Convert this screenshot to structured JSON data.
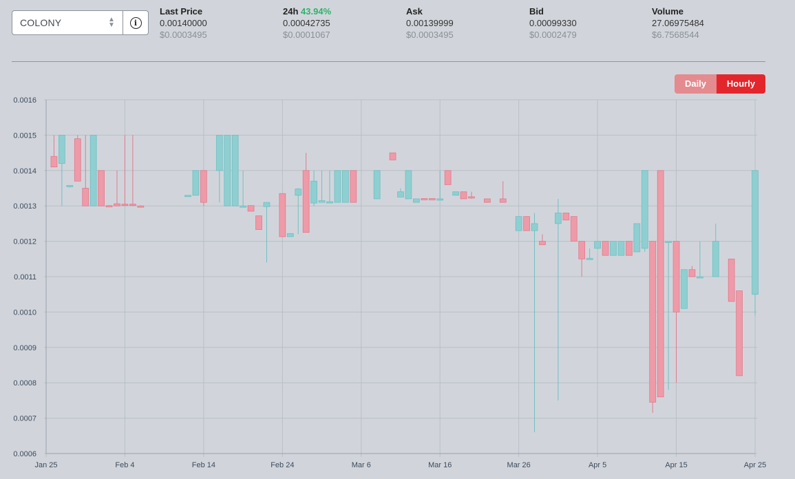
{
  "selector": {
    "value": "COLONY",
    "chevron": "chevron-updown-icon",
    "info_icon": "info-icon",
    "info_glyph": "i"
  },
  "stats": [
    {
      "label": "Last Price",
      "value": "0.00140000",
      "usd": "$0.0003495"
    },
    {
      "label": "24h",
      "label_extra": "43.94%",
      "value": "0.00042735",
      "usd": "$0.0001067"
    },
    {
      "label": "Ask",
      "value": "0.00139999",
      "usd": "$0.0003495"
    },
    {
      "label": "Bid",
      "value": "0.00099330",
      "usd": "$0.0002479"
    },
    {
      "label": "Volume",
      "value": "27.06975484",
      "usd": "$6.7568544"
    }
  ],
  "toggle": {
    "daily": "Daily",
    "hourly": "Hourly",
    "active": "Hourly"
  },
  "colors": {
    "up": "#8fcfd1",
    "down": "#ef9aa8",
    "grid": "#b9bec6",
    "green": "#2db36a",
    "accent": "#e3262c"
  },
  "chart_data": {
    "type": "candlestick",
    "title": "",
    "xlabel": "",
    "ylabel": "",
    "ylim": [
      0.0006,
      0.0016
    ],
    "yticks": [
      "0.0016",
      "0.0015",
      "0.0014",
      "0.0013",
      "0.0012",
      "0.0011",
      "0.0010",
      "0.0009",
      "0.0008",
      "0.0007",
      "0.0006"
    ],
    "xlim": [
      "2025-01-25",
      "2025-04-25"
    ],
    "xticks": [
      {
        "date": "2025-01-25",
        "label": "Jan 25"
      },
      {
        "date": "2025-02-04",
        "label": "Feb 4"
      },
      {
        "date": "2025-02-14",
        "label": "Feb 14"
      },
      {
        "date": "2025-02-24",
        "label": "Feb 24"
      },
      {
        "date": "2025-03-06",
        "label": "Mar 6"
      },
      {
        "date": "2025-03-16",
        "label": "Mar 16"
      },
      {
        "date": "2025-03-26",
        "label": "Mar 26"
      },
      {
        "date": "2025-04-05",
        "label": "Apr 5"
      },
      {
        "date": "2025-04-15",
        "label": "Apr 15"
      },
      {
        "date": "2025-04-25",
        "label": "Apr 25"
      }
    ],
    "grid": true,
    "candles": [
      {
        "date": "2025-01-26",
        "o": 0.00144,
        "h": 0.0015,
        "l": 0.00141,
        "c": 0.00141
      },
      {
        "date": "2025-01-27",
        "o": 0.00142,
        "h": 0.0015,
        "l": 0.0013,
        "c": 0.0015
      },
      {
        "date": "2025-01-28",
        "o": 0.001355,
        "h": 0.001358,
        "l": 0.001352,
        "c": 0.001358
      },
      {
        "date": "2025-01-29",
        "o": 0.00149,
        "h": 0.0015,
        "l": 0.00137,
        "c": 0.00137
      },
      {
        "date": "2025-01-30",
        "o": 0.00135,
        "h": 0.0015,
        "l": 0.0013,
        "c": 0.0013
      },
      {
        "date": "2025-01-31",
        "o": 0.0013,
        "h": 0.0015,
        "l": 0.0013,
        "c": 0.0015
      },
      {
        "date": "2025-02-01",
        "o": 0.0014,
        "h": 0.0014,
        "l": 0.0013,
        "c": 0.0013
      },
      {
        "date": "2025-02-02",
        "o": 0.001301,
        "h": 0.001302,
        "l": 0.001297,
        "c": 0.001298
      },
      {
        "date": "2025-02-03",
        "o": 0.001306,
        "h": 0.0014,
        "l": 0.0013,
        "c": 0.0013
      },
      {
        "date": "2025-02-04",
        "o": 0.001305,
        "h": 0.0015,
        "l": 0.0013,
        "c": 0.001303
      },
      {
        "date": "2025-02-05",
        "o": 0.001305,
        "h": 0.0015,
        "l": 0.0013,
        "c": 0.001303
      },
      {
        "date": "2025-02-06",
        "o": 0.0013,
        "h": 0.001302,
        "l": 0.001297,
        "c": 0.001298
      },
      {
        "date": "2025-02-12",
        "o": 0.001328,
        "h": 0.00133,
        "l": 0.001328,
        "c": 0.00133
      },
      {
        "date": "2025-02-13",
        "o": 0.00133,
        "h": 0.0014,
        "l": 0.00133,
        "c": 0.0014
      },
      {
        "date": "2025-02-14",
        "o": 0.0014,
        "h": 0.0014,
        "l": 0.0013,
        "c": 0.00131
      },
      {
        "date": "2025-02-16",
        "o": 0.0014,
        "h": 0.0015,
        "l": 0.00131,
        "c": 0.0015
      },
      {
        "date": "2025-02-17",
        "o": 0.0013,
        "h": 0.0015,
        "l": 0.0013,
        "c": 0.0015
      },
      {
        "date": "2025-02-18",
        "o": 0.0013,
        "h": 0.0015,
        "l": 0.0013,
        "c": 0.0015
      },
      {
        "date": "2025-02-19",
        "o": 0.0013,
        "h": 0.0014,
        "l": 0.0013,
        "c": 0.0013
      },
      {
        "date": "2025-02-20",
        "o": 0.001301,
        "h": 0.0013,
        "l": 0.001285,
        "c": 0.001285
      },
      {
        "date": "2025-02-21",
        "o": 0.001272,
        "h": 0.001272,
        "l": 0.001233,
        "c": 0.001233
      },
      {
        "date": "2025-02-22",
        "o": 0.001298,
        "h": 0.00131,
        "l": 0.00114,
        "c": 0.00131
      },
      {
        "date": "2025-02-24",
        "o": 0.001335,
        "h": 0.001335,
        "l": 0.001213,
        "c": 0.001213
      },
      {
        "date": "2025-02-25",
        "o": 0.001213,
        "h": 0.001213,
        "l": 0.001213,
        "c": 0.001222
      },
      {
        "date": "2025-02-26",
        "o": 0.00133,
        "h": 0.00135,
        "l": 0.00122,
        "c": 0.001348
      },
      {
        "date": "2025-02-27",
        "o": 0.0014,
        "h": 0.00145,
        "l": 0.001225,
        "c": 0.001225
      },
      {
        "date": "2025-02-28",
        "o": 0.001308,
        "h": 0.0014,
        "l": 0.0013,
        "c": 0.00137
      },
      {
        "date": "2025-03-01",
        "o": 0.00131,
        "h": 0.0014,
        "l": 0.00131,
        "c": 0.001315
      },
      {
        "date": "2025-03-02",
        "o": 0.00131,
        "h": 0.0014,
        "l": 0.00131,
        "c": 0.001312
      },
      {
        "date": "2025-03-03",
        "o": 0.00131,
        "h": 0.0014,
        "l": 0.00131,
        "c": 0.0014
      },
      {
        "date": "2025-03-04",
        "o": 0.00131,
        "h": 0.0014,
        "l": 0.00131,
        "c": 0.0014
      },
      {
        "date": "2025-03-05",
        "o": 0.0014,
        "h": 0.0014,
        "l": 0.00131,
        "c": 0.00131
      },
      {
        "date": "2025-03-08",
        "o": 0.00132,
        "h": 0.0014,
        "l": 0.00132,
        "c": 0.0014
      },
      {
        "date": "2025-03-10",
        "o": 0.00145,
        "h": 0.00145,
        "l": 0.00143,
        "c": 0.00143
      },
      {
        "date": "2025-03-11",
        "o": 0.001325,
        "h": 0.00135,
        "l": 0.001325,
        "c": 0.00134
      },
      {
        "date": "2025-03-12",
        "o": 0.00132,
        "h": 0.0014,
        "l": 0.00132,
        "c": 0.0014
      },
      {
        "date": "2025-03-13",
        "o": 0.00131,
        "h": 0.00132,
        "l": 0.00131,
        "c": 0.00132
      },
      {
        "date": "2025-03-14",
        "o": 0.001321,
        "h": 0.001321,
        "l": 0.001319,
        "c": 0.00132
      },
      {
        "date": "2025-03-15",
        "o": 0.001321,
        "h": 0.001322,
        "l": 0.00132,
        "c": 0.00132
      },
      {
        "date": "2025-03-16",
        "o": 0.00132,
        "h": 0.0014,
        "l": 0.00132,
        "c": 0.00132
      },
      {
        "date": "2025-03-17",
        "o": 0.0014,
        "h": 0.0014,
        "l": 0.00136,
        "c": 0.00136
      },
      {
        "date": "2025-03-18",
        "o": 0.00133,
        "h": 0.00134,
        "l": 0.00133,
        "c": 0.00134
      },
      {
        "date": "2025-03-19",
        "o": 0.00134,
        "h": 0.00134,
        "l": 0.00132,
        "c": 0.00132
      },
      {
        "date": "2025-03-20",
        "o": 0.001326,
        "h": 0.00134,
        "l": 0.00132,
        "c": 0.001322
      },
      {
        "date": "2025-03-22",
        "o": 0.00132,
        "h": 0.00132,
        "l": 0.00131,
        "c": 0.00131
      },
      {
        "date": "2025-03-24",
        "o": 0.00132,
        "h": 0.00137,
        "l": 0.00131,
        "c": 0.00131
      },
      {
        "date": "2025-03-26",
        "o": 0.00123,
        "h": 0.00127,
        "l": 0.00123,
        "c": 0.00127
      },
      {
        "date": "2025-03-27",
        "o": 0.00127,
        "h": 0.00127,
        "l": 0.00123,
        "c": 0.00123
      },
      {
        "date": "2025-03-28",
        "o": 0.00123,
        "h": 0.00128,
        "l": 0.00066,
        "c": 0.00125
      },
      {
        "date": "2025-03-29",
        "o": 0.0012,
        "h": 0.00122,
        "l": 0.00119,
        "c": 0.00119
      },
      {
        "date": "2025-03-31",
        "o": 0.00125,
        "h": 0.00132,
        "l": 0.00075,
        "c": 0.00128
      },
      {
        "date": "2025-04-01",
        "o": 0.00128,
        "h": 0.00128,
        "l": 0.00126,
        "c": 0.00126
      },
      {
        "date": "2025-04-02",
        "o": 0.00127,
        "h": 0.00127,
        "l": 0.0012,
        "c": 0.0012
      },
      {
        "date": "2025-04-03",
        "o": 0.0012,
        "h": 0.0012,
        "l": 0.0011,
        "c": 0.00115
      },
      {
        "date": "2025-04-04",
        "o": 0.00115,
        "h": 0.00118,
        "l": 0.00115,
        "c": 0.001152
      },
      {
        "date": "2025-04-05",
        "o": 0.00118,
        "h": 0.0012,
        "l": 0.00118,
        "c": 0.0012
      },
      {
        "date": "2025-04-06",
        "o": 0.0012,
        "h": 0.0012,
        "l": 0.00116,
        "c": 0.00116
      },
      {
        "date": "2025-04-07",
        "o": 0.00116,
        "h": 0.0012,
        "l": 0.00116,
        "c": 0.0012
      },
      {
        "date": "2025-04-08",
        "o": 0.00116,
        "h": 0.0012,
        "l": 0.00116,
        "c": 0.0012
      },
      {
        "date": "2025-04-09",
        "o": 0.0012,
        "h": 0.0012,
        "l": 0.00116,
        "c": 0.00116
      },
      {
        "date": "2025-04-10",
        "o": 0.00117,
        "h": 0.00125,
        "l": 0.00117,
        "c": 0.00125
      },
      {
        "date": "2025-04-11",
        "o": 0.00118,
        "h": 0.0014,
        "l": 0.00117,
        "c": 0.0014
      },
      {
        "date": "2025-04-12",
        "o": 0.0012,
        "h": 0.0012,
        "l": 0.000715,
        "c": 0.000745
      },
      {
        "date": "2025-04-13",
        "o": 0.0014,
        "h": 0.0014,
        "l": 0.00076,
        "c": 0.00076
      },
      {
        "date": "2025-04-14",
        "o": 0.0012,
        "h": 0.0012,
        "l": 0.00078,
        "c": 0.0012
      },
      {
        "date": "2025-04-15",
        "o": 0.0012,
        "h": 0.0012,
        "l": 0.0008,
        "c": 0.001
      },
      {
        "date": "2025-04-16",
        "o": 0.00101,
        "h": 0.00112,
        "l": 0.00101,
        "c": 0.00112
      },
      {
        "date": "2025-04-17",
        "o": 0.00112,
        "h": 0.00113,
        "l": 0.0011,
        "c": 0.0011
      },
      {
        "date": "2025-04-18",
        "o": 0.0011,
        "h": 0.0012,
        "l": 0.0011,
        "c": 0.0011
      },
      {
        "date": "2025-04-20",
        "o": 0.0011,
        "h": 0.00125,
        "l": 0.0011,
        "c": 0.0012
      },
      {
        "date": "2025-04-22",
        "o": 0.00115,
        "h": 0.00115,
        "l": 0.00103,
        "c": 0.00103
      },
      {
        "date": "2025-04-23",
        "o": 0.00106,
        "h": 0.00106,
        "l": 0.00082,
        "c": 0.00082
      },
      {
        "date": "2025-04-25",
        "o": 0.00105,
        "h": 0.0014,
        "l": 0.00099,
        "c": 0.0014
      }
    ]
  }
}
